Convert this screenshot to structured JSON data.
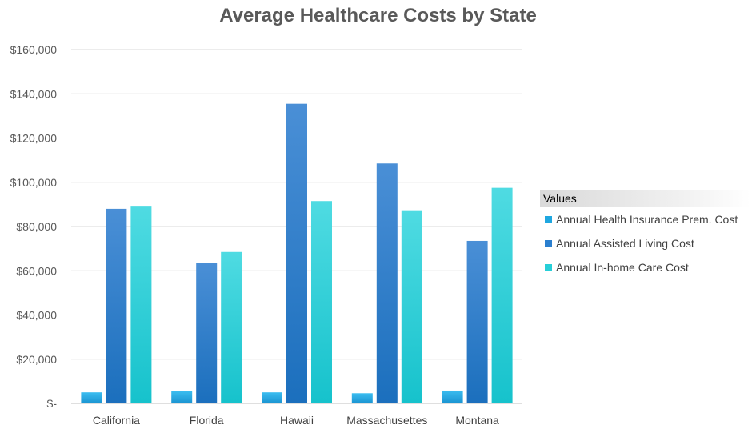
{
  "chart_data": {
    "type": "bar",
    "title": "Average Healthcare Costs by State",
    "categories": [
      "California",
      "Florida",
      "Hawaii",
      "Massachusettes",
      "Montana"
    ],
    "series": [
      {
        "name": "Annual Health Insurance Prem. Cost",
        "values": [
          5000,
          5500,
          5000,
          4600,
          5800
        ],
        "color": "#1fa7e0"
      },
      {
        "name": "Annual Assisted Living Cost",
        "values": [
          88000,
          63500,
          135500,
          108500,
          73500
        ],
        "color": "#2a7fcf"
      },
      {
        "name": "Annual In-home Care Cost",
        "values": [
          89000,
          68500,
          91500,
          87000,
          97500
        ],
        "color": "#27cfd8"
      }
    ],
    "ylim": [
      0,
      160000
    ],
    "yticks": [
      0,
      20000,
      40000,
      60000,
      80000,
      100000,
      120000,
      140000,
      160000
    ],
    "ytick_labels": [
      "$-",
      "$20,000",
      "$40,000",
      "$60,000",
      "$80,000",
      "$100,000",
      "$120,000",
      "$140,000",
      "$160,000"
    ],
    "grid": true,
    "legend": {
      "title": "Values",
      "placement": "right"
    }
  }
}
